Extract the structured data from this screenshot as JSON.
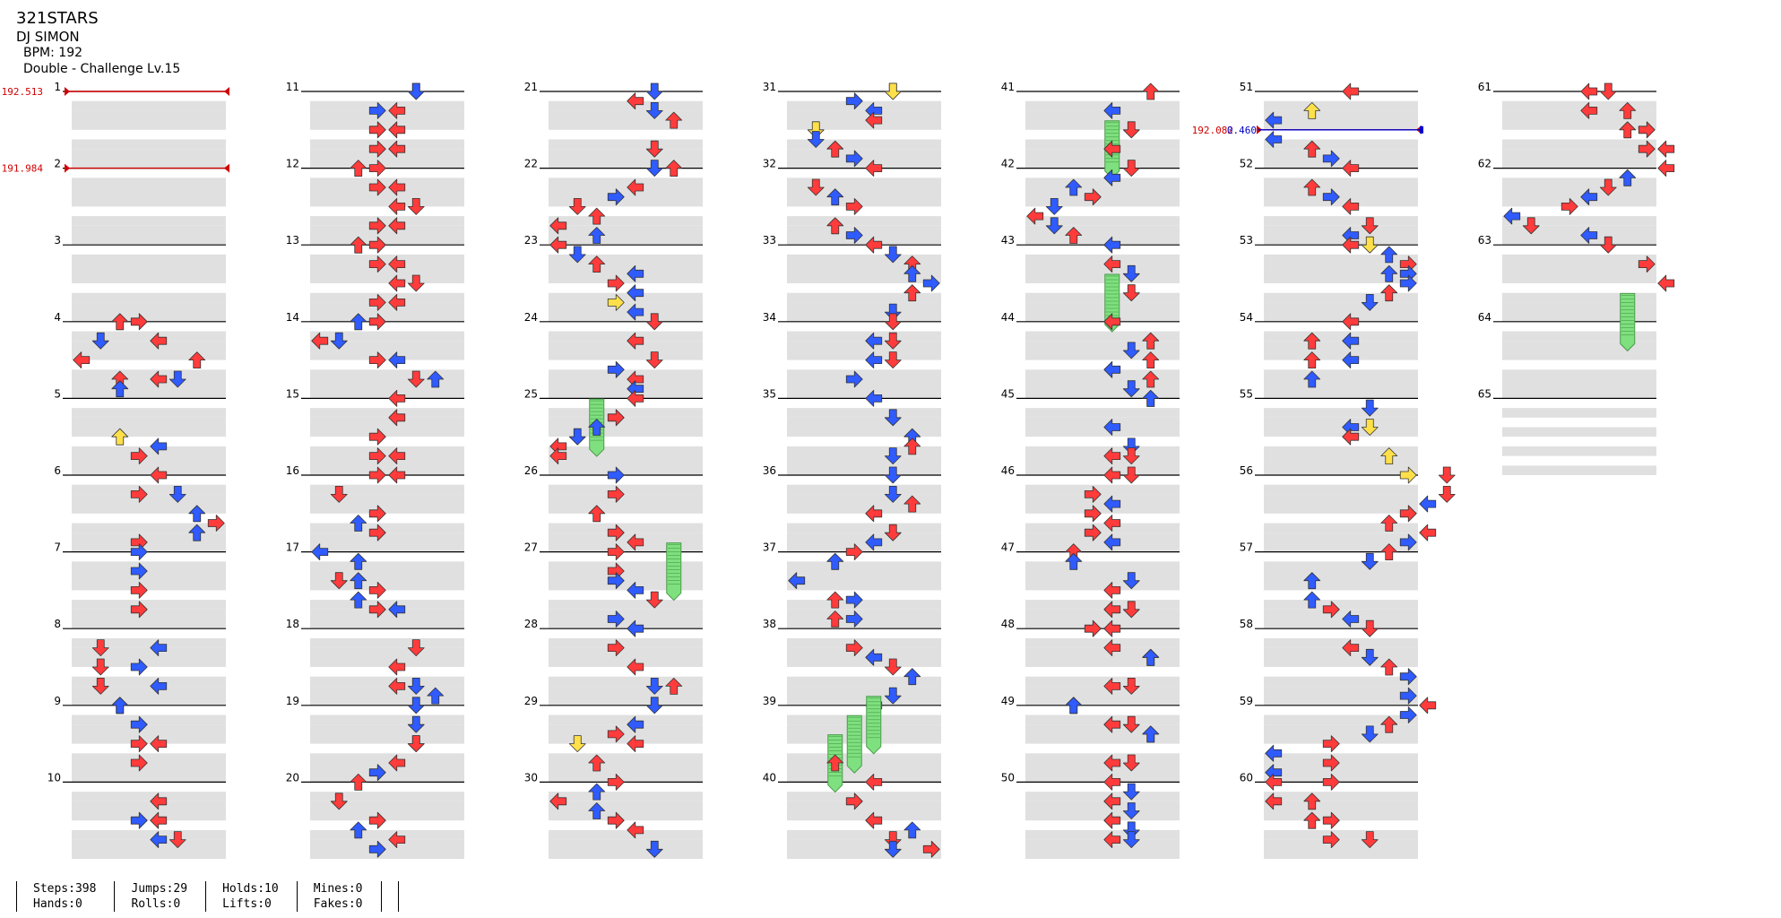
{
  "song": {
    "title": "321STARS",
    "artist": "DJ SIMON",
    "bpm_label": "BPM: 192",
    "difficulty_label": "Double - Challenge Lv.15"
  },
  "colors": {
    "red_arrow": "#ff3b3b",
    "blue_arrow": "#2f5bff",
    "yellow_arrow": "#ffe04a",
    "hold": "#7ee07e",
    "band": "#e0e0e0",
    "bpm_line": "#d00000",
    "stop_line": "#0000cc"
  },
  "measures": [
    "1",
    "2",
    "3",
    "4",
    "5",
    "6",
    "7",
    "8",
    "9",
    "10",
    "11",
    "12",
    "13",
    "14",
    "15",
    "16",
    "17",
    "18",
    "19",
    "20",
    "21",
    "22",
    "23",
    "24",
    "25",
    "26",
    "27",
    "28",
    "29",
    "30",
    "31",
    "32",
    "33",
    "34",
    "35",
    "36",
    "37",
    "38",
    "39",
    "40",
    "41",
    "42",
    "43",
    "44",
    "45",
    "46",
    "47",
    "48",
    "49",
    "50",
    "51",
    "52",
    "53",
    "54",
    "55",
    "56",
    "57",
    "58",
    "59",
    "60",
    "61",
    "62",
    "63",
    "64",
    "65"
  ],
  "bpm_changes": [
    {
      "label": "192.513",
      "measure": 1
    },
    {
      "label": "191.984",
      "measure": 2
    },
    {
      "label": "192.082",
      "measure": 51.5
    }
  ],
  "stops": [
    {
      "label": "0.460",
      "measure": 51.5
    }
  ],
  "stats": [
    {
      "top": "Steps:398",
      "bottom": "Hands:0"
    },
    {
      "top": "Jumps:29",
      "bottom": "Rolls:0"
    },
    {
      "top": "Holds:10",
      "bottom": "Lifts:0"
    },
    {
      "top": "Mines:0",
      "bottom": "Fakes:0"
    },
    {
      "top": "",
      "bottom": ""
    }
  ],
  "arrow_icons": [
    "left-arrow-icon",
    "down-arrow-icon",
    "up-arrow-icon",
    "right-arrow-icon",
    "hold-icon"
  ],
  "notes": [
    [
      4,
      2,
      "r"
    ],
    [
      4,
      3,
      "r"
    ],
    [
      4.25,
      4,
      "r"
    ],
    [
      4.25,
      1,
      "b"
    ],
    [
      4.5,
      6,
      "r"
    ],
    [
      4.5,
      0,
      "r"
    ],
    [
      4.75,
      2,
      "r"
    ],
    [
      4.75,
      4,
      "r"
    ],
    [
      4.75,
      5,
      "b"
    ],
    [
      4.875,
      2,
      "b"
    ],
    [
      5.5,
      2,
      "y"
    ],
    [
      5.625,
      4,
      "b"
    ],
    [
      5.75,
      3,
      "r"
    ],
    [
      6,
      4,
      "r"
    ],
    [
      6.25,
      5,
      "b"
    ],
    [
      6.25,
      3,
      "r"
    ],
    [
      6.5,
      6,
      "b"
    ],
    [
      6.625,
      7,
      "r"
    ],
    [
      6.75,
      6,
      "b"
    ],
    [
      6.875,
      3,
      "r"
    ],
    [
      7,
      3,
      "b"
    ],
    [
      7.25,
      3,
      "b"
    ],
    [
      7.5,
      3,
      "r"
    ],
    [
      7.75,
      3,
      "r"
    ],
    [
      8.25,
      1,
      "r"
    ],
    [
      8.25,
      4,
      "b"
    ],
    [
      8.5,
      1,
      "r"
    ],
    [
      8.5,
      3,
      "b"
    ],
    [
      8.75,
      1,
      "r"
    ],
    [
      8.75,
      4,
      "b"
    ],
    [
      9,
      2,
      "r"
    ],
    [
      9,
      2,
      "b"
    ],
    [
      9.25,
      3,
      "b"
    ],
    [
      9.5,
      3,
      "r"
    ],
    [
      9.5,
      4,
      "r"
    ],
    [
      9.75,
      3,
      "r"
    ],
    [
      10.25,
      4,
      "r"
    ],
    [
      10.5,
      4,
      "r"
    ],
    [
      10.5,
      3,
      "b"
    ],
    [
      10.75,
      4,
      "b"
    ],
    [
      10.75,
      5,
      "r"
    ],
    [
      11,
      5,
      "r"
    ],
    [
      11,
      5,
      "b"
    ],
    [
      11.25,
      3,
      "b"
    ],
    [
      11.25,
      4,
      "r"
    ],
    [
      11.5,
      3,
      "r"
    ],
    [
      11.5,
      4,
      "r"
    ],
    [
      11.75,
      3,
      "r"
    ],
    [
      11.75,
      4,
      "r"
    ],
    [
      12,
      2,
      "r"
    ],
    [
      12,
      3,
      "r"
    ],
    [
      12.25,
      3,
      "r"
    ],
    [
      12.25,
      4,
      "r"
    ],
    [
      12.5,
      4,
      "r"
    ],
    [
      12.5,
      5,
      "r"
    ],
    [
      12.75,
      3,
      "r"
    ],
    [
      12.75,
      4,
      "r"
    ],
    [
      13,
      2,
      "r"
    ],
    [
      13,
      3,
      "r"
    ],
    [
      13.25,
      3,
      "r"
    ],
    [
      13.25,
      4,
      "r"
    ],
    [
      13.5,
      4,
      "r"
    ],
    [
      13.5,
      5,
      "r"
    ],
    [
      13.75,
      3,
      "r"
    ],
    [
      13.75,
      4,
      "r"
    ],
    [
      14,
      3,
      "r"
    ],
    [
      14,
      2,
      "b"
    ],
    [
      14.25,
      0,
      "r"
    ],
    [
      14.25,
      1,
      "b"
    ],
    [
      14.5,
      3,
      "r"
    ],
    [
      14.5,
      4,
      "b"
    ],
    [
      14.75,
      5,
      "r"
    ],
    [
      14.75,
      6,
      "b"
    ],
    [
      15,
      4,
      "r"
    ],
    [
      15.25,
      4,
      "r"
    ],
    [
      15.5,
      3,
      "r"
    ],
    [
      15.75,
      3,
      "r"
    ],
    [
      15.75,
      4,
      "r"
    ],
    [
      16,
      3,
      "r"
    ],
    [
      16,
      4,
      "r"
    ],
    [
      16.25,
      1,
      "r"
    ],
    [
      16.5,
      3,
      "r"
    ],
    [
      16.625,
      2,
      "b"
    ],
    [
      16.75,
      3,
      "r"
    ],
    [
      17,
      0,
      "b"
    ],
    [
      17.125,
      2,
      "b"
    ],
    [
      17.375,
      2,
      "b"
    ],
    [
      17.375,
      1,
      "r"
    ],
    [
      17.5,
      3,
      "r"
    ],
    [
      17.625,
      2,
      "b"
    ],
    [
      17.75,
      3,
      "r"
    ],
    [
      17.75,
      4,
      "b"
    ],
    [
      18.25,
      5,
      "r"
    ],
    [
      18.5,
      4,
      "r"
    ],
    [
      18.75,
      4,
      "r"
    ],
    [
      18.75,
      5,
      "b"
    ],
    [
      18.875,
      6,
      "b"
    ],
    [
      19,
      5,
      "b"
    ],
    [
      19.25,
      5,
      "b"
    ],
    [
      19.5,
      5,
      "b"
    ],
    [
      19.5,
      5,
      "r"
    ],
    [
      19.75,
      4,
      "r"
    ],
    [
      19.875,
      3,
      "b"
    ],
    [
      20,
      2,
      "r"
    ],
    [
      20.25,
      1,
      "r"
    ],
    [
      20.5,
      3,
      "r"
    ],
    [
      20.625,
      2,
      "b"
    ],
    [
      20.75,
      4,
      "r"
    ],
    [
      20.875,
      3,
      "b"
    ],
    [
      21,
      5,
      "b"
    ],
    [
      21.125,
      4,
      "r"
    ],
    [
      21.25,
      5,
      "b"
    ],
    [
      21.375,
      6,
      "r"
    ],
    [
      21.75,
      5,
      "r"
    ],
    [
      22,
      6,
      "r"
    ],
    [
      22,
      5,
      "b"
    ],
    [
      22.25,
      4,
      "r"
    ],
    [
      22.375,
      3,
      "b"
    ],
    [
      22.5,
      1,
      "r"
    ],
    [
      22.625,
      2,
      "r"
    ],
    [
      22.75,
      0,
      "r"
    ],
    [
      22.875,
      2,
      "b"
    ],
    [
      23,
      0,
      "r"
    ],
    [
      23.125,
      1,
      "b"
    ],
    [
      23.25,
      2,
      "r"
    ],
    [
      23.375,
      4,
      "b"
    ],
    [
      23.5,
      3,
      "r"
    ],
    [
      23.625,
      4,
      "b"
    ],
    [
      23.75,
      3,
      "y"
    ],
    [
      23.875,
      4,
      "b"
    ],
    [
      24,
      5,
      "r"
    ],
    [
      24.25,
      4,
      "r"
    ],
    [
      24.5,
      5,
      "r"
    ],
    [
      24.625,
      3,
      "b"
    ],
    [
      24.75,
      4,
      "r"
    ],
    [
      24.875,
      4,
      "b"
    ],
    [
      25,
      4,
      "r"
    ],
    [
      25.125,
      2,
      "h"
    ],
    [
      25.25,
      3,
      "r"
    ],
    [
      25.375,
      2,
      "b"
    ],
    [
      25.5,
      1,
      "b"
    ],
    [
      25.625,
      0,
      "r"
    ],
    [
      25.75,
      0,
      "r"
    ],
    [
      26,
      3,
      "b"
    ],
    [
      26.25,
      3,
      "r"
    ],
    [
      26.5,
      2,
      "r"
    ],
    [
      26.75,
      3,
      "r"
    ],
    [
      26.875,
      4,
      "r"
    ],
    [
      27,
      3,
      "r"
    ],
    [
      27,
      6,
      "h"
    ],
    [
      27.25,
      3,
      "r"
    ],
    [
      27.375,
      3,
      "b"
    ],
    [
      27.5,
      4,
      "b"
    ],
    [
      27.625,
      5,
      "r"
    ],
    [
      27.875,
      3,
      "b"
    ],
    [
      28,
      4,
      "b"
    ],
    [
      28.25,
      3,
      "r"
    ],
    [
      28.5,
      4,
      "r"
    ],
    [
      28.75,
      5,
      "b"
    ],
    [
      28.75,
      6,
      "r"
    ],
    [
      29,
      5,
      "b"
    ],
    [
      29.25,
      4,
      "b"
    ],
    [
      29.375,
      3,
      "r"
    ],
    [
      29.5,
      4,
      "r"
    ],
    [
      29.5,
      1,
      "y"
    ],
    [
      29.75,
      2,
      "r"
    ],
    [
      30,
      3,
      "r"
    ],
    [
      30.125,
      2,
      "b"
    ],
    [
      30.25,
      0,
      "r"
    ],
    [
      30.375,
      2,
      "b"
    ],
    [
      30.5,
      3,
      "r"
    ],
    [
      30.625,
      4,
      "r"
    ],
    [
      30.875,
      5,
      "b"
    ],
    [
      31,
      5,
      "r"
    ],
    [
      31,
      5,
      "y"
    ],
    [
      31.125,
      3,
      "b"
    ],
    [
      31.25,
      4,
      "b"
    ],
    [
      31.375,
      4,
      "r"
    ],
    [
      31.5,
      1,
      "y"
    ],
    [
      31.625,
      1,
      "b"
    ],
    [
      31.75,
      2,
      "r"
    ],
    [
      31.875,
      3,
      "b"
    ],
    [
      32,
      4,
      "r"
    ],
    [
      32.25,
      1,
      "r"
    ],
    [
      32.375,
      2,
      "b"
    ],
    [
      32.5,
      3,
      "r"
    ],
    [
      32.75,
      2,
      "r"
    ],
    [
      32.875,
      3,
      "b"
    ],
    [
      33,
      4,
      "r"
    ],
    [
      33.125,
      5,
      "b"
    ],
    [
      33.25,
      6,
      "r"
    ],
    [
      33.375,
      6,
      "b"
    ],
    [
      33.5,
      7,
      "b"
    ],
    [
      33.625,
      6,
      "r"
    ],
    [
      33.875,
      5,
      "b"
    ],
    [
      34,
      5,
      "r"
    ],
    [
      34.25,
      4,
      "b"
    ],
    [
      34.25,
      5,
      "r"
    ],
    [
      34.5,
      4,
      "b"
    ],
    [
      34.5,
      5,
      "r"
    ],
    [
      34.75,
      3,
      "b"
    ],
    [
      35,
      4,
      "b"
    ],
    [
      35.25,
      5,
      "b"
    ],
    [
      35.5,
      6,
      "b"
    ],
    [
      35.625,
      6,
      "r"
    ],
    [
      35.75,
      5,
      "b"
    ],
    [
      36,
      5,
      "b"
    ],
    [
      36.25,
      5,
      "b"
    ],
    [
      36.375,
      6,
      "r"
    ],
    [
      36.5,
      4,
      "r"
    ],
    [
      36.75,
      5,
      "r"
    ],
    [
      36.875,
      4,
      "b"
    ],
    [
      37,
      3,
      "r"
    ],
    [
      37.125,
      2,
      "b"
    ],
    [
      37.375,
      0,
      "b"
    ],
    [
      37.625,
      2,
      "r"
    ],
    [
      37.625,
      3,
      "b"
    ],
    [
      37.875,
      2,
      "r"
    ],
    [
      37.875,
      3,
      "b"
    ],
    [
      38.25,
      3,
      "r"
    ],
    [
      38.375,
      4,
      "b"
    ],
    [
      38.5,
      5,
      "r"
    ],
    [
      38.625,
      6,
      "b"
    ],
    [
      38.875,
      5,
      "b"
    ],
    [
      39,
      4,
      "r"
    ],
    [
      39,
      4,
      "h"
    ],
    [
      39.25,
      3,
      "h"
    ],
    [
      39.5,
      2,
      "h"
    ],
    [
      39.75,
      2,
      "r"
    ],
    [
      40,
      4,
      "r"
    ],
    [
      40.25,
      3,
      "r"
    ],
    [
      40.5,
      4,
      "r"
    ],
    [
      40.625,
      6,
      "b"
    ],
    [
      40.75,
      5,
      "r"
    ],
    [
      40.875,
      7,
      "r"
    ],
    [
      40.875,
      5,
      "b"
    ],
    [
      41,
      6,
      "r"
    ],
    [
      41.25,
      4,
      "b"
    ],
    [
      41.5,
      5,
      "r"
    ],
    [
      41.5,
      4,
      "h"
    ],
    [
      41.75,
      4,
      "r"
    ],
    [
      42,
      5,
      "r"
    ],
    [
      42.125,
      4,
      "b"
    ],
    [
      42.25,
      2,
      "b"
    ],
    [
      42.375,
      3,
      "r"
    ],
    [
      42.5,
      1,
      "b"
    ],
    [
      42.625,
      0,
      "r"
    ],
    [
      42.75,
      1,
      "b"
    ],
    [
      42.875,
      2,
      "r"
    ],
    [
      43,
      4,
      "b"
    ],
    [
      43.25,
      4,
      "r"
    ],
    [
      43.375,
      5,
      "b"
    ],
    [
      43.5,
      4,
      "h"
    ],
    [
      43.625,
      5,
      "r"
    ],
    [
      44,
      4,
      "r"
    ],
    [
      44.25,
      6,
      "r"
    ],
    [
      44.375,
      5,
      "b"
    ],
    [
      44.5,
      6,
      "r"
    ],
    [
      44.625,
      4,
      "b"
    ],
    [
      44.75,
      6,
      "r"
    ],
    [
      44.875,
      5,
      "b"
    ],
    [
      45,
      6,
      "r"
    ],
    [
      45,
      6,
      "b"
    ],
    [
      45.375,
      4,
      "b"
    ],
    [
      45.625,
      5,
      "b"
    ],
    [
      45.75,
      4,
      "r"
    ],
    [
      45.75,
      5,
      "r"
    ],
    [
      46,
      4,
      "r"
    ],
    [
      46,
      5,
      "r"
    ],
    [
      46.25,
      3,
      "r"
    ],
    [
      46.375,
      4,
      "b"
    ],
    [
      46.5,
      3,
      "r"
    ],
    [
      46.625,
      4,
      "r"
    ],
    [
      46.75,
      3,
      "r"
    ],
    [
      46.875,
      4,
      "b"
    ],
    [
      47,
      2,
      "r"
    ],
    [
      47.125,
      2,
      "b"
    ],
    [
      47.375,
      5,
      "b"
    ],
    [
      47.5,
      4,
      "r"
    ],
    [
      47.75,
      4,
      "r"
    ],
    [
      47.75,
      5,
      "r"
    ],
    [
      48,
      3,
      "r"
    ],
    [
      48,
      4,
      "r"
    ],
    [
      48.25,
      4,
      "r"
    ],
    [
      48.375,
      6,
      "r"
    ],
    [
      48.375,
      6,
      "b"
    ],
    [
      48.75,
      4,
      "r"
    ],
    [
      48.75,
      5,
      "r"
    ],
    [
      49,
      2,
      "r"
    ],
    [
      49,
      2,
      "b"
    ],
    [
      49.25,
      4,
      "r"
    ],
    [
      49.25,
      5,
      "r"
    ],
    [
      49.375,
      6,
      "r"
    ],
    [
      49.375,
      6,
      "b"
    ],
    [
      49.75,
      4,
      "r"
    ],
    [
      49.75,
      5,
      "r"
    ],
    [
      50,
      4,
      "r"
    ],
    [
      50.125,
      5,
      "b"
    ],
    [
      50.25,
      4,
      "r"
    ],
    [
      50.375,
      5,
      "b"
    ],
    [
      50.5,
      4,
      "r"
    ],
    [
      50.625,
      5,
      "b"
    ],
    [
      50.75,
      4,
      "r"
    ],
    [
      50.75,
      5,
      "b"
    ],
    [
      51,
      4,
      "r"
    ],
    [
      51.25,
      2,
      "y"
    ],
    [
      51.375,
      0,
      "b"
    ],
    [
      51.625,
      0,
      "b"
    ],
    [
      51.75,
      2,
      "r"
    ],
    [
      51.875,
      3,
      "b"
    ],
    [
      52,
      4,
      "r"
    ],
    [
      52.25,
      2,
      "r"
    ],
    [
      52.375,
      3,
      "b"
    ],
    [
      52.5,
      4,
      "r"
    ],
    [
      52.75,
      5,
      "r"
    ],
    [
      52.875,
      4,
      "b"
    ],
    [
      53,
      4,
      "r"
    ],
    [
      53,
      5,
      "y"
    ],
    [
      53.125,
      6,
      "b"
    ],
    [
      53.25,
      7,
      "r"
    ],
    [
      53.375,
      6,
      "b"
    ],
    [
      53.375,
      7,
      "b"
    ],
    [
      53.5,
      7,
      "b"
    ],
    [
      53.625,
      6,
      "r"
    ],
    [
      53.75,
      5,
      "b"
    ],
    [
      54,
      4,
      "r"
    ],
    [
      54.25,
      2,
      "r"
    ],
    [
      54.25,
      4,
      "b"
    ],
    [
      54.5,
      2,
      "r"
    ],
    [
      54.5,
      4,
      "b"
    ],
    [
      54.75,
      2,
      "b"
    ],
    [
      55.125,
      5,
      "b"
    ],
    [
      55.375,
      4,
      "b"
    ],
    [
      55.375,
      5,
      "y"
    ],
    [
      55.5,
      4,
      "r"
    ],
    [
      55.75,
      6,
      "y"
    ],
    [
      56,
      7,
      "y"
    ],
    [
      56,
      9,
      "r"
    ],
    [
      56.25,
      9,
      "r"
    ],
    [
      56.375,
      8,
      "b"
    ],
    [
      56.5,
      7,
      "r"
    ],
    [
      56.625,
      6,
      "r"
    ],
    [
      56.75,
      8,
      "r"
    ],
    [
      56.875,
      7,
      "b"
    ],
    [
      57,
      6,
      "r"
    ],
    [
      57.125,
      5,
      "b"
    ],
    [
      57.375,
      2,
      "b"
    ],
    [
      57.625,
      2,
      "b"
    ],
    [
      57.75,
      3,
      "r"
    ],
    [
      57.875,
      4,
      "b"
    ],
    [
      58,
      5,
      "r"
    ],
    [
      58.25,
      4,
      "r"
    ],
    [
      58.375,
      5,
      "b"
    ],
    [
      58.5,
      6,
      "r"
    ],
    [
      58.625,
      7,
      "b"
    ],
    [
      58.875,
      7,
      "b"
    ],
    [
      59,
      8,
      "r"
    ],
    [
      59.125,
      7,
      "b"
    ],
    [
      59.25,
      6,
      "r"
    ],
    [
      59.375,
      5,
      "b"
    ],
    [
      59.5,
      3,
      "r"
    ],
    [
      59.625,
      0,
      "b"
    ],
    [
      59.75,
      3,
      "r"
    ],
    [
      59.875,
      0,
      "b"
    ],
    [
      60,
      0,
      "r"
    ],
    [
      60,
      3,
      "r"
    ],
    [
      60.25,
      0,
      "r"
    ],
    [
      60.25,
      2,
      "r"
    ],
    [
      60.5,
      2,
      "r"
    ],
    [
      60.5,
      3,
      "r"
    ],
    [
      60.75,
      3,
      "r"
    ],
    [
      60.75,
      5,
      "r"
    ],
    [
      61,
      4,
      "r"
    ],
    [
      61,
      5,
      "r"
    ],
    [
      61.25,
      4,
      "r"
    ],
    [
      61.25,
      6,
      "r"
    ],
    [
      61.5,
      6,
      "r"
    ],
    [
      61.5,
      7,
      "r"
    ],
    [
      61.75,
      7,
      "r"
    ],
    [
      61.75,
      8,
      "r"
    ],
    [
      62,
      8,
      "r"
    ],
    [
      62.125,
      6,
      "b"
    ],
    [
      62.25,
      5,
      "r"
    ],
    [
      62.375,
      4,
      "b"
    ],
    [
      62.5,
      3,
      "r"
    ],
    [
      62.625,
      0,
      "b"
    ],
    [
      62.75,
      1,
      "r"
    ],
    [
      62.875,
      4,
      "b"
    ],
    [
      63,
      5,
      "r"
    ],
    [
      63.25,
      7,
      "r"
    ],
    [
      63.5,
      8,
      "r"
    ],
    [
      63.75,
      6,
      "h"
    ]
  ]
}
